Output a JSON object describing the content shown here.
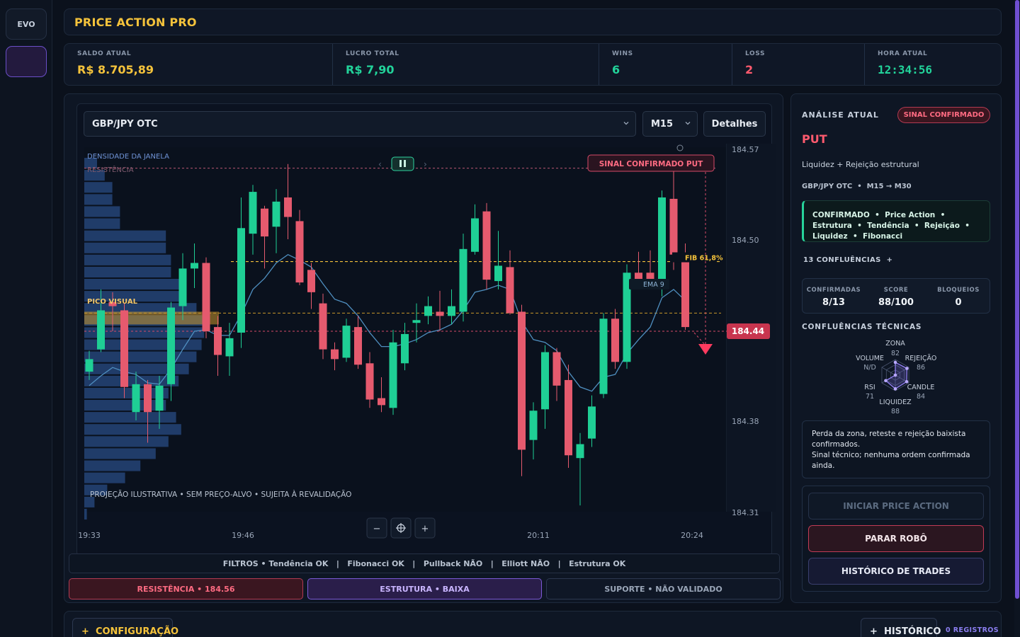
{
  "rail": {
    "evo_label": "EVO"
  },
  "header": {
    "title": "PRICE ACTION PRO"
  },
  "stats": [
    {
      "label": "SALDO ATUAL",
      "value": "R$ 8.705,89",
      "color": "#f5c33b"
    },
    {
      "label": "LUCRO TOTAL",
      "value": "R$ 7,90",
      "color": "#22d39a"
    },
    {
      "label": "WINS",
      "value": "6",
      "color": "#22d39a"
    },
    {
      "label": "LOSS",
      "value": "2",
      "color": "#ff5a6e"
    },
    {
      "label": "HORA ATUAL",
      "value": "12:34:56",
      "color": "#22d39a"
    }
  ],
  "chart": {
    "pair": "GBP/JPY OTC",
    "timeframe": "M15",
    "details_label": "Detalhes",
    "density_label": "DENSIDADE DA JANELA",
    "resistance_label": "RESISTÊNCIA",
    "peak_label": "PICO VISUAL",
    "signal_label": "SINAL CONFIRMADO PUT",
    "fib_label": "FIB 61,8%",
    "ema_label": "EMA 9",
    "current_price": "184.44",
    "projection_note": "PROJEÇÃO ILUSTRATIVA • SEM PREÇO-ALVO • SUJEITA À REVALIDAÇÃO",
    "play_controls": {
      "prev": "‹",
      "next": "›"
    },
    "zoom_out": "−",
    "zoom_in": "+",
    "filters": "FILTROS • Tendência OK   |   Fibonacci OK   |   Pullback NÃO   |   Elliott NÃO   |   Estrutura OK",
    "zones": {
      "resistance": "RESISTÊNCIA • 184.56",
      "structure": "ESTRUTURA • BAIXA",
      "support": "SUPORTE • NÃO VALIDADO"
    },
    "colors": {
      "bull": "#1fcf95",
      "bear": "#e55a6e",
      "ema": "#4f8fc0",
      "fib": "#f5c33b"
    }
  },
  "chart_data": {
    "type": "candlestick",
    "y_ticks": [
      "184.57",
      "184.50",
      "184.38",
      "184.31"
    ],
    "x_ticks": [
      "19:33",
      "19:46",
      "20:11",
      "20:24"
    ],
    "levels": {
      "resistance": 184.56,
      "fib_618": 184.49,
      "current": 184.44
    },
    "candles": [
      {
        "o": 184.411,
        "c": 184.42,
        "h": 184.426,
        "l": 184.405
      },
      {
        "o": 184.427,
        "c": 184.455,
        "h": 184.47,
        "l": 184.425
      },
      {
        "o": 184.461,
        "c": 184.458,
        "h": 184.468,
        "l": 184.44
      },
      {
        "o": 184.455,
        "c": 184.4,
        "h": 184.46,
        "l": 184.392
      },
      {
        "o": 184.382,
        "c": 184.402,
        "h": 184.411,
        "l": 184.376
      },
      {
        "o": 184.402,
        "c": 184.382,
        "h": 184.405,
        "l": 184.36
      },
      {
        "o": 184.383,
        "c": 184.401,
        "h": 184.408,
        "l": 184.37
      },
      {
        "o": 184.402,
        "c": 184.457,
        "h": 184.461,
        "l": 184.39
      },
      {
        "o": 184.458,
        "c": 184.485,
        "h": 184.496,
        "l": 184.448
      },
      {
        "o": 184.485,
        "c": 184.489,
        "h": 184.503,
        "l": 184.471
      },
      {
        "o": 184.489,
        "c": 184.44,
        "h": 184.493,
        "l": 184.435
      },
      {
        "o": 184.443,
        "c": 184.423,
        "h": 184.451,
        "l": 184.408
      },
      {
        "o": 184.422,
        "c": 184.435,
        "h": 184.446,
        "l": 184.408
      },
      {
        "o": 184.439,
        "c": 184.514,
        "h": 184.536,
        "l": 184.428
      },
      {
        "o": 184.51,
        "c": 184.54,
        "h": 184.545,
        "l": 184.495
      },
      {
        "o": 184.528,
        "c": 184.508,
        "h": 184.53,
        "l": 184.485
      },
      {
        "o": 184.515,
        "c": 184.533,
        "h": 184.542,
        "l": 184.496
      },
      {
        "o": 184.536,
        "c": 184.522,
        "h": 184.56,
        "l": 184.506
      },
      {
        "o": 184.519,
        "c": 184.475,
        "h": 184.527,
        "l": 184.473
      },
      {
        "o": 184.484,
        "c": 184.468,
        "h": 184.489,
        "l": 184.456
      },
      {
        "o": 184.46,
        "c": 184.427,
        "h": 184.467,
        "l": 184.42
      },
      {
        "o": 184.427,
        "c": 184.42,
        "h": 184.432,
        "l": 184.412
      },
      {
        "o": 184.421,
        "c": 184.444,
        "h": 184.449,
        "l": 184.418
      },
      {
        "o": 184.443,
        "c": 184.416,
        "h": 184.451,
        "l": 184.413
      },
      {
        "o": 184.417,
        "c": 184.391,
        "h": 184.425,
        "l": 184.385
      },
      {
        "o": 184.392,
        "c": 184.387,
        "h": 184.407,
        "l": 184.382
      },
      {
        "o": 184.385,
        "c": 184.432,
        "h": 184.441,
        "l": 184.38
      },
      {
        "o": 184.417,
        "c": 184.438,
        "h": 184.446,
        "l": 184.412
      },
      {
        "o": 184.446,
        "c": 184.448,
        "h": 184.46,
        "l": 184.432
      },
      {
        "o": 184.451,
        "c": 184.458,
        "h": 184.465,
        "l": 184.445
      },
      {
        "o": 184.454,
        "c": 184.451,
        "h": 184.469,
        "l": 184.44
      },
      {
        "o": 184.451,
        "c": 184.458,
        "h": 184.47,
        "l": 184.445
      },
      {
        "o": 184.454,
        "c": 184.499,
        "h": 184.51,
        "l": 184.447
      },
      {
        "o": 184.497,
        "c": 184.521,
        "h": 184.531,
        "l": 184.495
      },
      {
        "o": 184.526,
        "c": 184.477,
        "h": 184.532,
        "l": 184.47
      },
      {
        "o": 184.476,
        "c": 184.487,
        "h": 184.512,
        "l": 184.47
      },
      {
        "o": 184.486,
        "c": 184.453,
        "h": 184.498,
        "l": 184.452
      },
      {
        "o": 184.454,
        "c": 184.355,
        "h": 184.459,
        "l": 184.336
      },
      {
        "o": 184.362,
        "c": 184.383,
        "h": 184.389,
        "l": 184.348
      },
      {
        "o": 184.384,
        "c": 184.425,
        "h": 184.43,
        "l": 184.37
      },
      {
        "o": 184.425,
        "c": 184.401,
        "h": 184.428,
        "l": 184.39
      },
      {
        "o": 184.405,
        "c": 184.351,
        "h": 184.416,
        "l": 184.342
      },
      {
        "o": 184.349,
        "c": 184.359,
        "h": 184.367,
        "l": 184.315
      },
      {
        "o": 184.363,
        "c": 184.386,
        "h": 184.394,
        "l": 184.357
      },
      {
        "o": 184.395,
        "c": 184.449,
        "h": 184.453,
        "l": 184.392
      },
      {
        "o": 184.449,
        "c": 184.418,
        "h": 184.456,
        "l": 184.413
      },
      {
        "o": 184.418,
        "c": 184.482,
        "h": 184.488,
        "l": 184.413
      },
      {
        "o": 184.482,
        "c": 184.477,
        "h": 184.497,
        "l": 184.472
      },
      {
        "o": 184.482,
        "c": 184.476,
        "h": 184.498,
        "l": 184.47
      },
      {
        "o": 184.472,
        "c": 184.536,
        "h": 184.541,
        "l": 184.465
      },
      {
        "o": 184.535,
        "c": 184.495,
        "h": 184.561,
        "l": 184.484
      },
      {
        "o": 184.491,
        "c": 184.443,
        "h": 184.503,
        "l": 184.441
      }
    ],
    "ema9": [
      184.401,
      184.408,
      184.414,
      184.411,
      184.409,
      184.403,
      184.402,
      184.413,
      184.427,
      184.44,
      184.441,
      184.437,
      184.437,
      184.452,
      184.47,
      184.478,
      184.489,
      184.495,
      184.491,
      184.486,
      184.474,
      184.463,
      184.46,
      184.451,
      184.439,
      184.429,
      184.429,
      184.431,
      184.434,
      184.439,
      184.441,
      184.445,
      184.455,
      184.468,
      184.47,
      184.473,
      184.47,
      184.447,
      184.434,
      184.432,
      184.426,
      184.411,
      184.4,
      184.397,
      184.407,
      184.409,
      184.424,
      184.434,
      184.443,
      184.464,
      184.47,
      184.462
    ],
    "volume_profile": [
      5,
      8,
      11,
      11,
      14,
      14,
      32,
      32,
      34,
      34,
      38,
      40,
      44,
      47,
      47,
      46,
      44,
      41,
      37,
      33,
      32,
      36,
      38,
      33,
      28,
      22,
      16,
      9,
      4,
      1
    ]
  },
  "analysis": {
    "title": "ANÁLISE ATUAL",
    "badge": "SINAL CONFIRMADO",
    "direction": "PUT",
    "reason": "Liquidez + Rejeição estrutural",
    "pair_tf": "GBP/JPY OTC  •  M15 → M30",
    "confirmed_text": "CONFIRMADO  •  Price Action  •  Estrutura  •  Tendência  •  Rejeição  •  Liquidez  •  Fibonacci",
    "confluences": "13 CONFLUÊNCIAS  +",
    "metrics": [
      {
        "label": "CONFIRMADAS",
        "value": "8/13"
      },
      {
        "label": "SCORE",
        "value": "88/100"
      },
      {
        "label": "BLOQUEIOS",
        "value": "0"
      }
    ],
    "tech_title": "CONFLUÊNCIAS TÉCNICAS",
    "radar": [
      {
        "name": "ZONA",
        "score": "82",
        "value": 82
      },
      {
        "name": "REJEIÇÃO",
        "score": "86",
        "value": 86
      },
      {
        "name": "CANDLE",
        "score": "84",
        "value": 84
      },
      {
        "name": "LIQUIDEZ",
        "score": "88",
        "value": 88
      },
      {
        "name": "RSI",
        "score": "71",
        "value": 71
      },
      {
        "name": "VOLUME",
        "score": "N/D",
        "value": 0
      }
    ],
    "notes": "Perda da zona, reteste e rejeição baixista confirmados.\nSinal técnico; nenhuma ordem confirmada ainda.",
    "buttons": {
      "start": "INICIAR PRICE ACTION",
      "stop": "PARAR ROBÔ",
      "history": "HISTÓRICO DE TRADES"
    }
  },
  "bottom": {
    "config": "+  CONFIGURAÇÃO",
    "history": "+  HISTÓRICO",
    "records": "0 REGISTROS"
  }
}
